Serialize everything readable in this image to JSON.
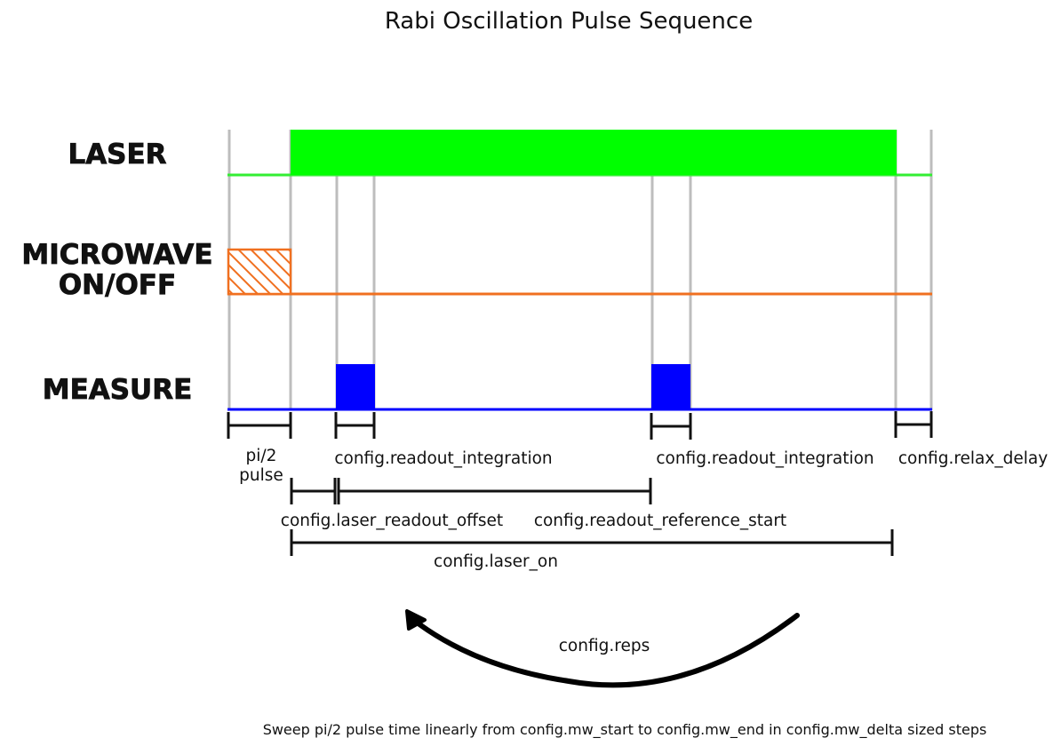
{
  "title": "Rabi Oscillation Pulse Sequence",
  "channels": {
    "laser": {
      "label": "LASER",
      "color": "#00ff00"
    },
    "microwave": {
      "label_line1": "MICROWAVE",
      "label_line2": "ON/OFF",
      "color": "#f07020"
    },
    "measure": {
      "label": "MEASURE",
      "color": "#0000ff"
    }
  },
  "annotations": {
    "pi2_line1": "pi/2",
    "pi2_line2": "pulse",
    "readout_integration_1": "config.readout_integration",
    "readout_integration_2": "config.readout_integration",
    "relax_delay": "config.relax_delay",
    "laser_readout_offset": "config.laser_readout_offset",
    "readout_reference_start": "config.readout_reference_start",
    "laser_on": "config.laser_on",
    "reps": "config.reps"
  },
  "footnote": "Sweep pi/2 pulse time linearly from config.mw_start to config.mw_end in config.mw_delta sized steps"
}
